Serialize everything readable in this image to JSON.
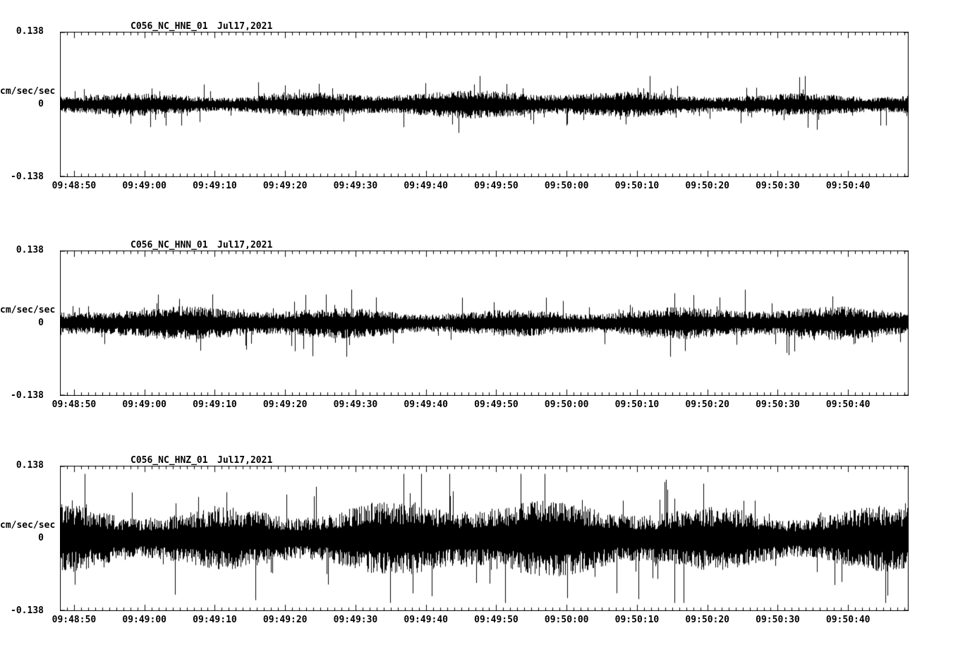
{
  "page": {
    "background": "#ffffff",
    "text_color": "#000000"
  },
  "chart_data": [
    {
      "type": "line",
      "title": "C056_NC_HNE_01",
      "date_label": "Jul17,2021",
      "ylabel": "cm/sec/sec",
      "ylim": [
        -0.138,
        0.138
      ],
      "yticks": [
        "0.138",
        "0",
        "-0.138"
      ],
      "xticks": [
        "09:48:50",
        "09:49:00",
        "09:49:10",
        "09:49:20",
        "09:49:30",
        "09:49:40",
        "09:49:50",
        "09:50:00",
        "09:50:10",
        "09:50:20",
        "09:50:30",
        "09:50:40"
      ],
      "x_start_offset_s": 2,
      "x_total_s": 120.5,
      "x_major_interval_s": 10,
      "x_minor_interval_s": 1,
      "grid": false,
      "legend": false,
      "trace_color": "#000000",
      "typical_amplitude": 0.02,
      "peak_amplitude": 0.055,
      "seed": 11
    },
    {
      "type": "line",
      "title": "C056_NC_HNN_01",
      "date_label": "Jul17,2021",
      "ylabel": "cm/sec/sec",
      "ylim": [
        -0.138,
        0.138
      ],
      "yticks": [
        "0.138",
        "0",
        "-0.138"
      ],
      "xticks": [
        "09:48:50",
        "09:49:00",
        "09:49:10",
        "09:49:20",
        "09:49:30",
        "09:49:40",
        "09:49:50",
        "09:50:00",
        "09:50:10",
        "09:50:20",
        "09:50:30",
        "09:50:40"
      ],
      "x_start_offset_s": 2,
      "x_total_s": 120.5,
      "x_major_interval_s": 10,
      "x_minor_interval_s": 1,
      "grid": false,
      "legend": false,
      "trace_color": "#000000",
      "typical_amplitude": 0.024,
      "peak_amplitude": 0.065,
      "seed": 22
    },
    {
      "type": "line",
      "title": "C056_NC_HNZ_01",
      "date_label": "Jul17,2021",
      "ylabel": "cm/sec/sec",
      "ylim": [
        -0.138,
        0.138
      ],
      "yticks": [
        "0.138",
        "0",
        "-0.138"
      ],
      "xticks": [
        "09:48:50",
        "09:49:00",
        "09:49:10",
        "09:49:20",
        "09:49:30",
        "09:49:40",
        "09:49:50",
        "09:50:00",
        "09:50:10",
        "09:50:20",
        "09:50:30",
        "09:50:40"
      ],
      "x_start_offset_s": 2,
      "x_total_s": 120.5,
      "x_major_interval_s": 10,
      "x_minor_interval_s": 1,
      "grid": false,
      "legend": false,
      "trace_color": "#000000",
      "typical_amplitude": 0.055,
      "peak_amplitude": 0.125,
      "seed": 33
    }
  ]
}
